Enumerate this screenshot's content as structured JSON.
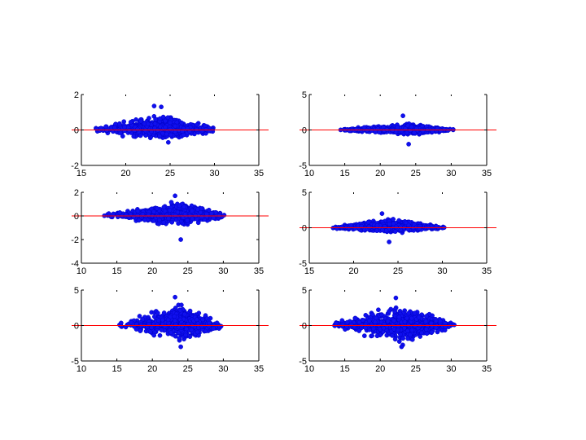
{
  "colors": {
    "points": "#1010ee",
    "reference_line": "#ff0000",
    "axes": "#000000"
  },
  "chart_data": [
    {
      "type": "scatter",
      "title": "",
      "xlabel": "",
      "ylabel": "",
      "xlim": [
        15,
        35
      ],
      "ylim": [
        -2,
        2
      ],
      "xticks": [
        "15",
        "20",
        "25",
        "30",
        "35"
      ],
      "yticks": [
        "-2",
        "0",
        "2"
      ],
      "reference_line_y": 0,
      "grid": false,
      "cloud": {
        "x_range": [
          16,
          30.5
        ],
        "peak_x": 24,
        "peak_spread_y": 0.85,
        "center_y": 0.15,
        "outliers_y": [
          1.35,
          1.3,
          -0.7
        ]
      }
    },
    {
      "type": "scatter",
      "title": "",
      "xlabel": "",
      "ylabel": "",
      "xlim": [
        10,
        35
      ],
      "ylim": [
        -5,
        5
      ],
      "xticks": [
        "10",
        "15",
        "20",
        "25",
        "30",
        "35"
      ],
      "yticks": [
        "-5",
        "0",
        "5"
      ],
      "reference_line_y": 0,
      "grid": false,
      "cloud": {
        "x_range": [
          14,
          30.5
        ],
        "peak_x": 24,
        "peak_spread_y": 0.9,
        "center_y": 0.1,
        "outliers_y": [
          2,
          -2
        ]
      }
    },
    {
      "type": "scatter",
      "title": "",
      "xlabel": "",
      "ylabel": "",
      "xlim": [
        10,
        35
      ],
      "ylim": [
        -4,
        2
      ],
      "xticks": [
        "10",
        "15",
        "20",
        "25",
        "30",
        "35"
      ],
      "yticks": [
        "-4",
        "-2",
        "0",
        "2"
      ],
      "reference_line_y": 0,
      "grid": false,
      "cloud": {
        "x_range": [
          13,
          30.5
        ],
        "peak_x": 24,
        "peak_spread_y": 1.2,
        "center_y": 0.2,
        "outliers_y": [
          1.7,
          -2
        ]
      }
    },
    {
      "type": "scatter",
      "title": "",
      "xlabel": "",
      "ylabel": "",
      "xlim": [
        15,
        35
      ],
      "ylim": [
        -5,
        5
      ],
      "xticks": [
        "15",
        "20",
        "25",
        "30",
        "35"
      ],
      "yticks": [
        "-5",
        "0",
        "5"
      ],
      "reference_line_y": 0,
      "grid": false,
      "cloud": {
        "x_range": [
          17.5,
          30.5
        ],
        "peak_x": 24,
        "peak_spread_y": 1.2,
        "center_y": 0.3,
        "outliers_y": [
          2,
          -2
        ]
      }
    },
    {
      "type": "scatter",
      "title": "",
      "xlabel": "",
      "ylabel": "",
      "xlim": [
        10,
        35
      ],
      "ylim": [
        -5,
        5
      ],
      "xticks": [
        "10",
        "15",
        "20",
        "25",
        "30",
        "35"
      ],
      "yticks": [
        "-5",
        "0",
        "5"
      ],
      "reference_line_y": 0,
      "grid": false,
      "cloud": {
        "x_range": [
          15,
          30
        ],
        "peak_x": 24,
        "peak_spread_y": 3,
        "center_y": 0.4,
        "outliers_y": [
          4,
          -3
        ]
      }
    },
    {
      "type": "scatter",
      "title": "",
      "xlabel": "",
      "ylabel": "",
      "xlim": [
        10,
        35
      ],
      "ylim": [
        -5,
        5
      ],
      "xticks": [
        "10",
        "15",
        "20",
        "25",
        "30",
        "35"
      ],
      "yticks": [
        "-5",
        "0",
        "5"
      ],
      "reference_line_y": 0,
      "grid": false,
      "cloud": {
        "x_range": [
          13,
          30.5
        ],
        "peak_x": 23,
        "peak_spread_y": 3.2,
        "center_y": 0.2,
        "outliers_y": [
          3.9,
          -3
        ]
      }
    }
  ]
}
